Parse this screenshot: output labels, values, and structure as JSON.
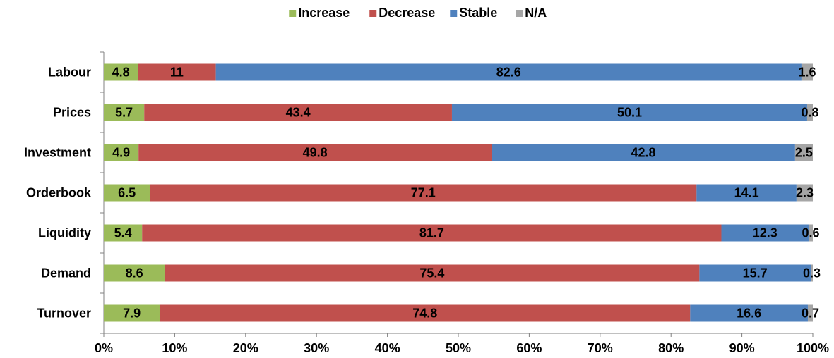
{
  "chart_data": {
    "type": "bar",
    "orientation": "horizontal",
    "stacked": "percent",
    "title": "",
    "xlabel": "",
    "ylabel": "",
    "xlim": [
      0,
      100
    ],
    "x_ticks": [
      "0%",
      "10%",
      "20%",
      "30%",
      "40%",
      "50%",
      "60%",
      "70%",
      "80%",
      "90%",
      "100%"
    ],
    "grid": false,
    "legend_position": "top",
    "categories": [
      "Labour",
      "Prices",
      "Investment",
      "Orderbook",
      "Liquidity",
      "Demand",
      "Turnover"
    ],
    "series": [
      {
        "name": "Increase",
        "color": "#9BBB59",
        "values": [
          4.8,
          5.7,
          4.9,
          6.5,
          5.4,
          8.6,
          7.9
        ]
      },
      {
        "name": "Decrease",
        "color": "#C0504D",
        "values": [
          11,
          43.4,
          49.8,
          77.1,
          81.7,
          75.4,
          74.8
        ]
      },
      {
        "name": "Stable",
        "color": "#4F81BD",
        "values": [
          82.6,
          50.1,
          42.8,
          14.1,
          12.3,
          15.7,
          16.6
        ]
      },
      {
        "name": "N/A",
        "color": "#A6A6A6",
        "values": [
          1.6,
          0.8,
          2.5,
          2.3,
          0.6,
          0.3,
          0.7
        ]
      }
    ]
  }
}
